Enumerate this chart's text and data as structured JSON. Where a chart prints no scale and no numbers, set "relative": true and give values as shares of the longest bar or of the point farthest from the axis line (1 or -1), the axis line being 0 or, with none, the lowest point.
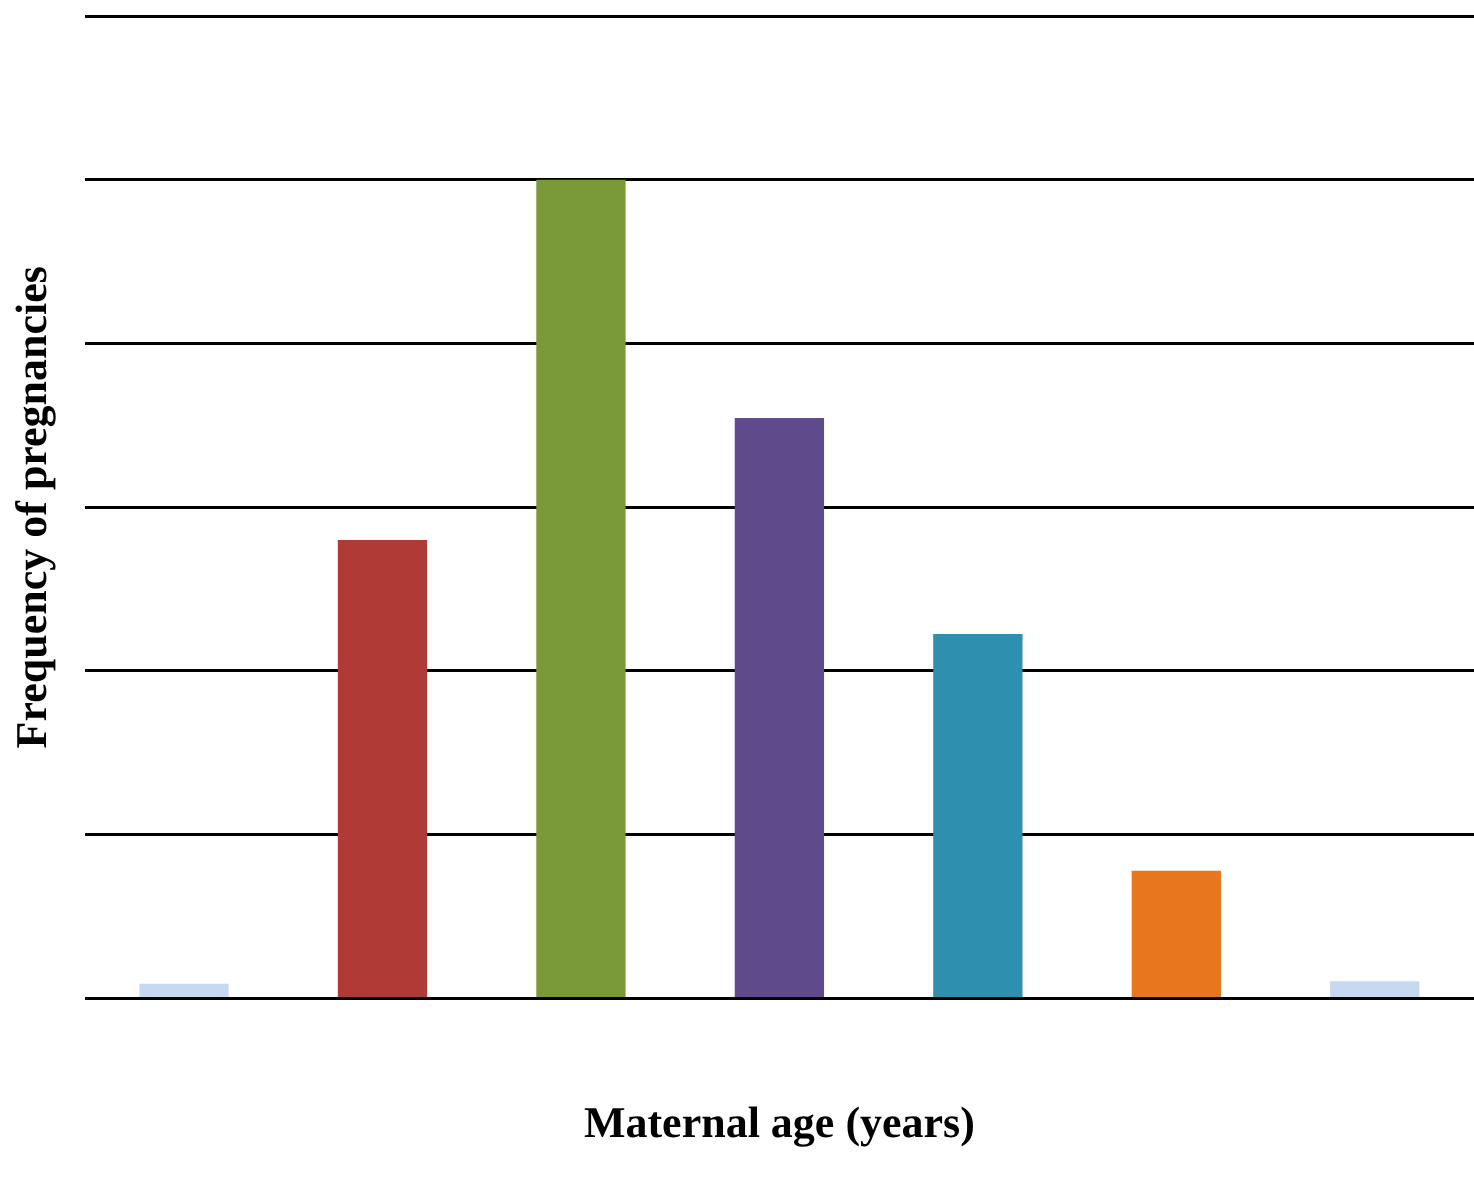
{
  "chart_data": {
    "type": "bar",
    "relative": true,
    "xlabel": "Maternal age (years)",
    "ylabel": "Frequency of pregnancies",
    "categories": [
      null,
      null,
      null,
      null,
      null,
      null,
      null
    ],
    "values": [
      0.018,
      0.56,
      1,
      0.709,
      0.445,
      0.156,
      0.021
    ],
    "colors": [
      "#c6d9f1",
      "#b03a36",
      "#7a9a3a",
      "#5f4a8b",
      "#2e8fae",
      "#e8761e",
      "#c6d9f1"
    ],
    "grid": "y",
    "legend": false
  }
}
